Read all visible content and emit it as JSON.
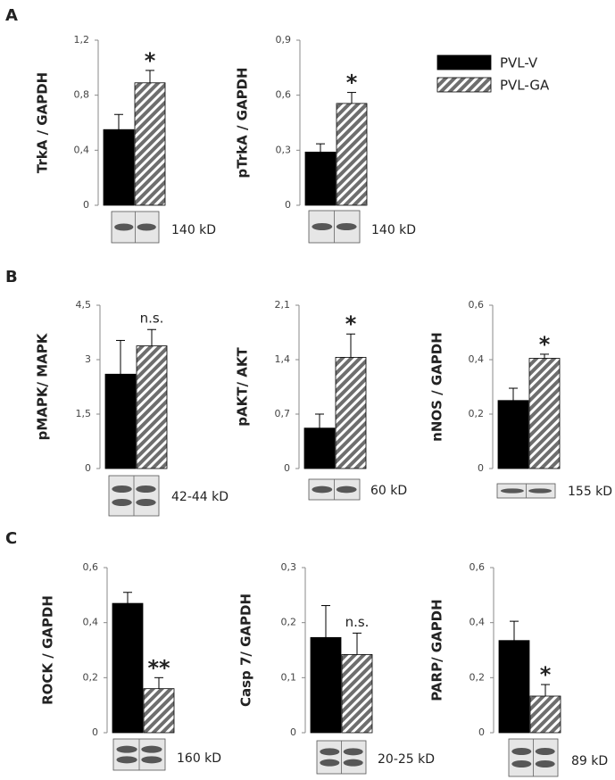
{
  "panels": [
    "A",
    "B",
    "C"
  ],
  "legend": {
    "series": [
      {
        "name": "PVL-V",
        "color": "#000000"
      },
      {
        "name": "PVL-GA",
        "color": "#6e6e6e",
        "pattern": "hatch"
      }
    ]
  },
  "chart_data": [
    {
      "type": "bar",
      "ylabel": "TrkA / GAPDH",
      "ylim": [
        0,
        1.2
      ],
      "yticks": [
        0,
        {
          "value": 0.4,
          "label": "0,4"
        },
        {
          "value": 0.8,
          "label": "0,8"
        },
        {
          "value": 1.2,
          "label": "1,2"
        }
      ],
      "values": [
        0.55,
        0.89
      ],
      "errors": [
        0.11,
        0.09
      ],
      "annotation": "*",
      "blot_label": "140 kD"
    },
    {
      "type": "bar",
      "ylabel": "pTrkA / GAPDH",
      "ylim": [
        0,
        0.9
      ],
      "yticks": [
        0,
        {
          "value": 0.3,
          "label": "0,3"
        },
        {
          "value": 0.6,
          "label": "0,6"
        },
        {
          "value": 0.9,
          "label": "0,9"
        }
      ],
      "values": [
        0.29,
        0.555
      ],
      "errors": [
        0.045,
        0.06
      ],
      "annotation": "*",
      "blot_label": "140 kD"
    },
    {
      "type": "bar",
      "ylabel": "pMAPK/ MAPK",
      "ylim": [
        0,
        4.5
      ],
      "yticks": [
        0,
        {
          "value": 1.5,
          "label": "1,5"
        },
        3,
        {
          "value": 4.5,
          "label": "4,5"
        }
      ],
      "values": [
        2.6,
        3.38
      ],
      "errors": [
        0.93,
        0.45
      ],
      "annotation": "n.s.",
      "blot_label": "42-44 kD"
    },
    {
      "type": "bar",
      "ylabel": "pAKT/ AKT",
      "ylim": [
        0,
        2.1
      ],
      "yticks": [
        0,
        {
          "value": 0.7,
          "label": "0,7"
        },
        {
          "value": 1.4,
          "label": "1,4"
        },
        {
          "value": 2.1,
          "label": "2,1"
        }
      ],
      "values": [
        0.52,
        1.43
      ],
      "errors": [
        0.18,
        0.3
      ],
      "annotation": "*",
      "blot_label": "60 kD"
    },
    {
      "type": "bar",
      "ylabel": "nNOS / GAPDH",
      "ylim": [
        0,
        0.6
      ],
      "yticks": [
        0,
        {
          "value": 0.2,
          "label": "0,2"
        },
        {
          "value": 0.4,
          "label": "0,4"
        },
        {
          "value": 0.6,
          "label": "0,6"
        }
      ],
      "values": [
        0.25,
        0.405
      ],
      "errors": [
        0.045,
        0.015
      ],
      "annotation": "*",
      "blot_label": "155 kD"
    },
    {
      "type": "bar",
      "ylabel": "ROCK / GAPDH",
      "ylim": [
        0,
        0.6
      ],
      "yticks": [
        0,
        {
          "value": 0.2,
          "label": "0,2"
        },
        {
          "value": 0.4,
          "label": "0,4"
        },
        {
          "value": 0.6,
          "label": "0,6"
        }
      ],
      "values": [
        0.47,
        0.16
      ],
      "errors": [
        0.04,
        0.04
      ],
      "annotation": "**",
      "blot_label": "160 kD"
    },
    {
      "type": "bar",
      "ylabel": "Casp 7/ GAPDH",
      "ylim": [
        0,
        0.3
      ],
      "yticks": [
        0,
        {
          "value": 0.1,
          "label": "0,1"
        },
        {
          "value": 0.2,
          "label": "0,2"
        },
        {
          "value": 0.3,
          "label": "0,3"
        }
      ],
      "values": [
        0.173,
        0.142
      ],
      "errors": [
        0.058,
        0.039
      ],
      "annotation": "n.s.",
      "blot_label": "20-25 kD"
    },
    {
      "type": "bar",
      "ylabel": "PARP/ GAPDH",
      "ylim": [
        0,
        0.6
      ],
      "yticks": [
        0,
        {
          "value": 0.2,
          "label": "0,2"
        },
        {
          "value": 0.4,
          "label": "0,4"
        },
        {
          "value": 0.6,
          "label": "0,6"
        }
      ],
      "values": [
        0.335,
        0.133
      ],
      "errors": [
        0.07,
        0.042
      ],
      "annotation": "*",
      "blot_label": "89 kD"
    }
  ]
}
